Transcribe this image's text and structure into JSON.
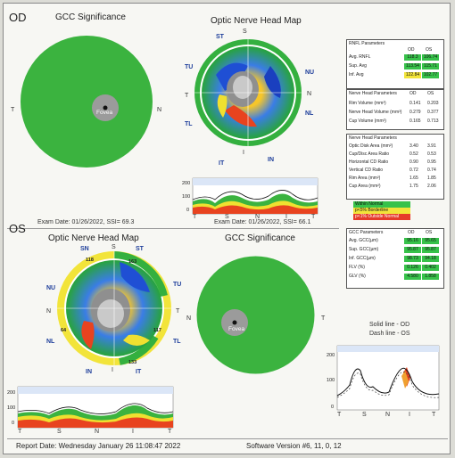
{
  "od": {
    "eye_label": "OD",
    "gcc_title": "GCC Significance",
    "onh_title": "Optic Nerve Head Map",
    "fovea_label": "Fovea",
    "gcc_side_left": "T",
    "gcc_side_right": "N",
    "onh_labels": [
      "ST",
      "TU",
      "NU",
      "TL",
      "NL",
      "IT",
      "IN",
      "T",
      "N",
      "S",
      "I"
    ],
    "exam_left": "Exam Date: 01/26/2022, SSI= 69.3",
    "exam_right": "Exam Date: 01/26/2022, SSI= 66.1",
    "tsnit_axis": [
      "T",
      "S",
      "N",
      "I",
      "T"
    ],
    "tsnit_ticks": [
      "200",
      "100",
      "0"
    ]
  },
  "os": {
    "eye_label": "OS",
    "onh_title": "Optic Nerve Head Map",
    "gcc_title": "GCC Significance",
    "fovea_label": "Fovea",
    "gcc_side_left": "N",
    "gcc_side_right": "T",
    "onh_numbers": [
      "118",
      "163",
      "64",
      "117",
      "133"
    ],
    "onh_labels": [
      "SN",
      "ST",
      "NU",
      "TU",
      "NL",
      "TL",
      "IN",
      "IT",
      "N",
      "T",
      "S",
      "I"
    ],
    "tsnit_axis": [
      "T",
      "S",
      "N",
      "I",
      "T"
    ],
    "tsnit_ticks": [
      "200",
      "100",
      "0"
    ],
    "legend_solid": "Solid line - OD",
    "legend_dash": "Dash line - OS",
    "compare_axis": [
      "T",
      "S",
      "N",
      "I",
      "T"
    ],
    "compare_ticks": [
      "200",
      "100",
      "0"
    ]
  },
  "rnfl_table": {
    "title": "RNFL Parameters",
    "col1": "OD",
    "col2": "OS",
    "rows": [
      {
        "label": "Avg. RNFL",
        "od": "118.3",
        "os": "106.74"
      },
      {
        "label": "Sup. Avg",
        "od": "113.54",
        "os": "115.71"
      },
      {
        "label": "Inf. Avg",
        "od": "122.84",
        "os": "102.77"
      }
    ]
  },
  "onh_params1": {
    "title": "Nerve Head Parameters",
    "col1": "OD",
    "col2": "OS",
    "rows": [
      {
        "label": "Rim Volume (mm³)",
        "od": "0.141",
        "os": "0.203"
      },
      {
        "label": "Nerve Head Volume (mm³)",
        "od": "0.279",
        "os": "0.377"
      },
      {
        "label": "Cup Volume (mm³)",
        "od": "0.165",
        "os": "0.713"
      }
    ]
  },
  "onh_params2": {
    "title": "Nerve Head Parameters",
    "rows": [
      {
        "label": "Optic Disk Area (mm²)",
        "od": "3.40",
        "os": "3.91"
      },
      {
        "label": "Cup/Disc Area Ratio",
        "od": "0.52",
        "os": "0.53"
      },
      {
        "label": "Horizontal CD Ratio",
        "od": "0.90",
        "os": "0.95"
      },
      {
        "label": "Vertical CD Ratio",
        "od": "0.72",
        "os": "0.74"
      },
      {
        "label": "Rim Area (mm²)",
        "od": "1.65",
        "os": "1.85"
      },
      {
        "label": "Cup Area (mm²)",
        "od": "1.75",
        "os": "2.06"
      }
    ]
  },
  "significance_legend": [
    "Within Normal",
    "p<5% Borderline",
    "p<1% Outside Normal"
  ],
  "gcc_table": {
    "title": "GCC Parameters",
    "col1": "OD",
    "col2": "OS",
    "rows": [
      {
        "label": "Avg. GCC(µm)",
        "od": "95.16",
        "os": "95.65"
      },
      {
        "label": "Sup. GCC(µm)",
        "od": "95.87",
        "os": "95.87"
      },
      {
        "label": "Inf. GCC(µm)",
        "od": "98.73",
        "os": "94.18"
      },
      {
        "label": "FLV (%)",
        "od": "0.126",
        "os": "0.402"
      },
      {
        "label": "GLV (%)",
        "od": "4.580",
        "os": "1.858"
      }
    ]
  },
  "footer": {
    "report_date": "Report Date: Wednesday January 26 11:08:47 2022",
    "software": "Software Version #6, 11, 0, 12"
  }
}
